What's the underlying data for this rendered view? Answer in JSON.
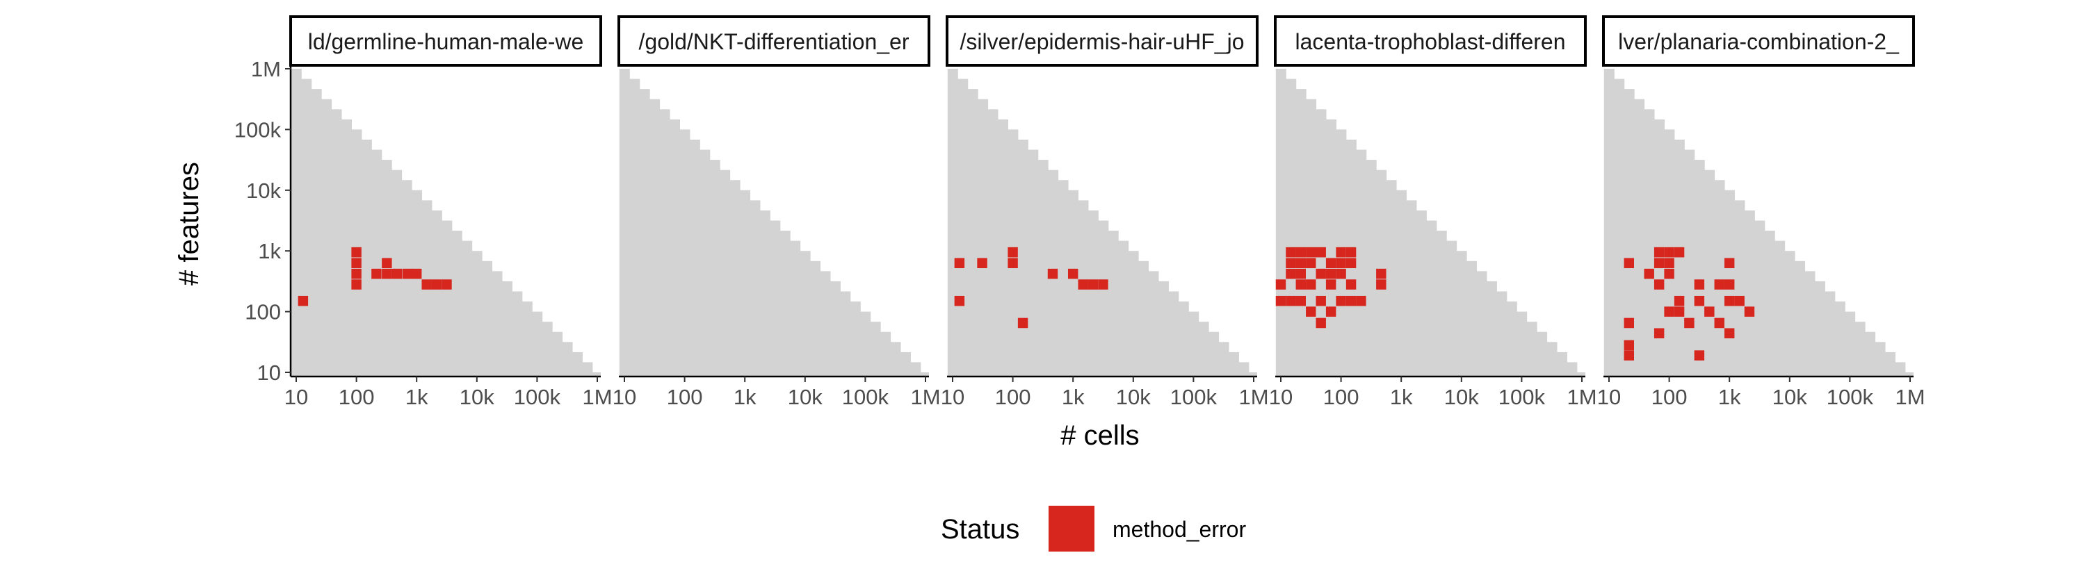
{
  "chart_data": {
    "type": "heatmap",
    "xlabel": "# cells",
    "ylabel": "# features",
    "x_scale": "log10",
    "y_scale": "log10",
    "xlim": [
      10,
      1000000
    ],
    "ylim": [
      10,
      1000000
    ],
    "x_ticks": [
      {
        "value": 10,
        "label": "10"
      },
      {
        "value": 100,
        "label": "100"
      },
      {
        "value": 1000,
        "label": "1k"
      },
      {
        "value": 10000,
        "label": "10k"
      },
      {
        "value": 100000,
        "label": "100k"
      },
      {
        "value": 1000000,
        "label": "1M"
      }
    ],
    "y_ticks": [
      {
        "value": 10,
        "label": "10"
      },
      {
        "value": 100,
        "label": "100"
      },
      {
        "value": 1000,
        "label": "1k"
      },
      {
        "value": 10000,
        "label": "10k"
      },
      {
        "value": 100000,
        "label": "100k"
      },
      {
        "value": 1000000,
        "label": "1M"
      }
    ],
    "grid": false,
    "background_region": "cells_x_features_at_most_1e7",
    "background_color": "#d3d3d3",
    "legend": {
      "title": "Status",
      "position": "bottom",
      "entries": [
        {
          "label": "method_error",
          "color": "#d7261e"
        }
      ]
    },
    "panels": [
      {
        "strip": "ld/germline-human-male-we",
        "method_error_cells": [
          [
            13,
            150
          ],
          [
            100,
            280
          ],
          [
            100,
            420
          ],
          [
            100,
            630
          ],
          [
            100,
            950
          ],
          [
            215,
            420
          ],
          [
            320,
            630
          ],
          [
            320,
            420
          ],
          [
            470,
            420
          ],
          [
            700,
            420
          ],
          [
            1000,
            420
          ],
          [
            1470,
            280
          ],
          [
            2150,
            280
          ],
          [
            3160,
            280
          ]
        ]
      },
      {
        "strip": "/gold/NKT-differentiation_er",
        "method_error_cells": []
      },
      {
        "strip": "/silver/epidermis-hair-uHF_jo",
        "method_error_cells": [
          [
            13,
            630
          ],
          [
            13,
            150
          ],
          [
            31,
            630
          ],
          [
            100,
            630
          ],
          [
            100,
            950
          ],
          [
            147,
            65
          ],
          [
            460,
            420
          ],
          [
            1000,
            420
          ],
          [
            1470,
            280
          ],
          [
            2150,
            280
          ],
          [
            3160,
            280
          ]
        ]
      },
      {
        "strip": "lacenta-trophoblast-differen",
        "method_error_cells": [
          [
            10,
            280
          ],
          [
            10,
            150
          ],
          [
            14.7,
            950
          ],
          [
            14.7,
            630
          ],
          [
            14.7,
            420
          ],
          [
            14.7,
            150
          ],
          [
            21.5,
            950
          ],
          [
            21.5,
            630
          ],
          [
            21.5,
            420
          ],
          [
            21.5,
            280
          ],
          [
            21.5,
            150
          ],
          [
            31.6,
            950
          ],
          [
            31.6,
            630
          ],
          [
            31.6,
            280
          ],
          [
            31.6,
            100
          ],
          [
            46.4,
            950
          ],
          [
            46.4,
            420
          ],
          [
            46.4,
            150
          ],
          [
            46.4,
            65
          ],
          [
            68.1,
            630
          ],
          [
            68.1,
            420
          ],
          [
            68.1,
            280
          ],
          [
            68.1,
            100
          ],
          [
            100,
            950
          ],
          [
            100,
            630
          ],
          [
            100,
            420
          ],
          [
            100,
            150
          ],
          [
            147,
            950
          ],
          [
            147,
            630
          ],
          [
            147,
            280
          ],
          [
            147,
            150
          ],
          [
            215,
            150
          ],
          [
            464,
            420
          ],
          [
            464,
            280
          ]
        ]
      },
      {
        "strip": "lver/planaria-combination-2_",
        "method_error_cells": [
          [
            21.5,
            630
          ],
          [
            21.5,
            65
          ],
          [
            21.5,
            28
          ],
          [
            21.5,
            19
          ],
          [
            46.4,
            420
          ],
          [
            68.1,
            950
          ],
          [
            68.1,
            630
          ],
          [
            68.1,
            280
          ],
          [
            68.1,
            44
          ],
          [
            100,
            950
          ],
          [
            100,
            630
          ],
          [
            100,
            420
          ],
          [
            100,
            100
          ],
          [
            147,
            950
          ],
          [
            147,
            150
          ],
          [
            147,
            100
          ],
          [
            215,
            65
          ],
          [
            316,
            280
          ],
          [
            316,
            150
          ],
          [
            316,
            19
          ],
          [
            464,
            100
          ],
          [
            681,
            280
          ],
          [
            681,
            65
          ],
          [
            1000,
            630
          ],
          [
            1000,
            280
          ],
          [
            1000,
            150
          ],
          [
            1000,
            44
          ],
          [
            1470,
            150
          ],
          [
            2150,
            100
          ]
        ]
      }
    ]
  }
}
